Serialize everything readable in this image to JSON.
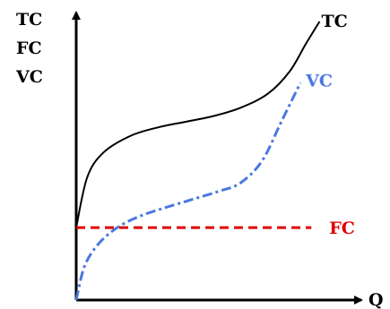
{
  "chart_data": {
    "type": "line",
    "x_axis_label": "Q",
    "y_axis_labels": [
      "TC",
      "FC",
      "VC"
    ],
    "axis_ticks": "none",
    "grid": false,
    "xlim": [
      0,
      10
    ],
    "ylim": [
      0,
      10
    ],
    "series": [
      {
        "name": "TC",
        "color": "#000000",
        "line_style": "solid",
        "points": [
          [
            0.0,
            2.6
          ],
          [
            0.4,
            4.4
          ],
          [
            1.0,
            5.3
          ],
          [
            2.0,
            5.9
          ],
          [
            3.0,
            6.2
          ],
          [
            4.0,
            6.4
          ],
          [
            5.0,
            6.6
          ],
          [
            6.0,
            6.9
          ],
          [
            7.0,
            7.4
          ],
          [
            7.8,
            8.2
          ],
          [
            8.4,
            9.2
          ],
          [
            8.9,
            10.0
          ]
        ]
      },
      {
        "name": "VC",
        "color": "#4a78e0",
        "line_style": "dash-dot",
        "points": [
          [
            0.0,
            0.0
          ],
          [
            0.3,
            1.2
          ],
          [
            0.8,
            2.0
          ],
          [
            1.5,
            2.6
          ],
          [
            2.3,
            3.0
          ],
          [
            3.2,
            3.3
          ],
          [
            4.2,
            3.6
          ],
          [
            5.2,
            3.9
          ],
          [
            6.0,
            4.2
          ],
          [
            6.8,
            5.0
          ],
          [
            7.5,
            6.4
          ],
          [
            8.2,
            7.8
          ]
        ]
      },
      {
        "name": "FC",
        "color": "#e00000",
        "line_style": "dashed",
        "points": [
          [
            0.0,
            2.6
          ],
          [
            8.6,
            2.6
          ]
        ]
      }
    ]
  }
}
